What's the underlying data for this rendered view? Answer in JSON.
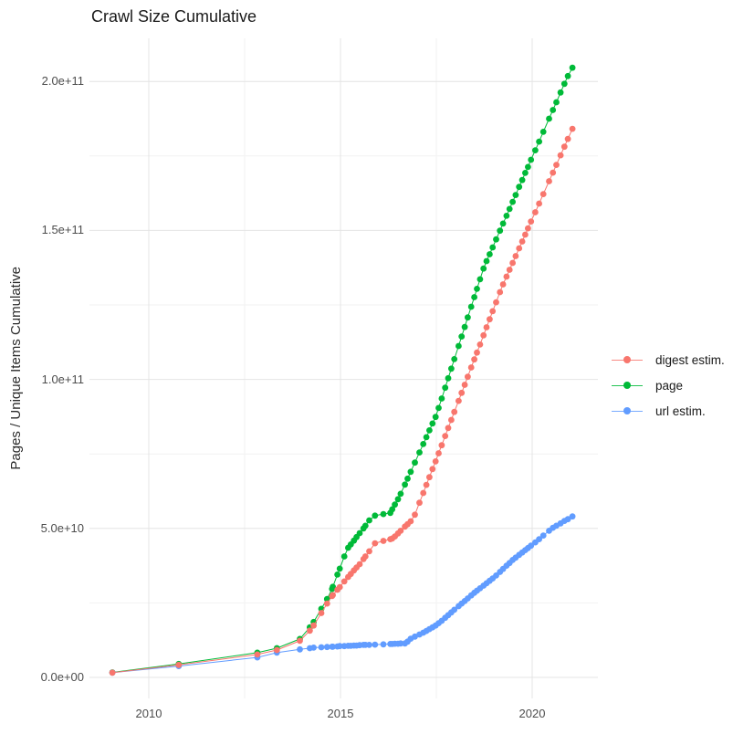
{
  "title": "Crawl Size Cumulative",
  "y_axis": {
    "title": "Pages / Unique Items Cumulative",
    "tick_labels": [
      "0.0e+00",
      "5.0e+10",
      "1.0e+11",
      "1.5e+11",
      "2.0e+11"
    ]
  },
  "x_axis": {
    "tick_labels": [
      "2010",
      "2015",
      "2020"
    ]
  },
  "legend": {
    "items": [
      {
        "label": "digest estim.",
        "color": "#F8766D"
      },
      {
        "label": "page",
        "color": "#00BA38"
      },
      {
        "label": "url estim.",
        "color": "#619CFF"
      }
    ]
  },
  "colors": {
    "digest": "#F8766D",
    "page": "#00BA38",
    "url": "#619CFF",
    "grid_major": "#E4E4E4",
    "grid_minor": "#F2F2F2",
    "tick_text": "#4d4d4d",
    "title_text": "#1a1a1a"
  },
  "chart_data": {
    "type": "scatter",
    "title": "Crawl Size Cumulative",
    "xlabel": "",
    "ylabel": "Pages / Unique Items Cumulative",
    "value_unit": "pages / items, values stored in billions (1e9)",
    "grid": true,
    "legend_position": "right",
    "xlim": [
      2008.45,
      2021.71
    ],
    "ylim_e9": [
      0,
      214
    ],
    "axes": {
      "x_major": [
        {
          "value": 2010,
          "label": "2010"
        },
        {
          "value": 2015,
          "label": "2015"
        },
        {
          "value": 2020,
          "label": "2020"
        }
      ],
      "x_minor": [
        2012.5,
        2017.5
      ],
      "y_major_e9": [
        {
          "value": 0,
          "label": "0.0e+00"
        },
        {
          "value": 50,
          "label": "5.0e+10"
        },
        {
          "value": 100,
          "label": "1.0e+11"
        },
        {
          "value": 150,
          "label": "1.5e+11"
        },
        {
          "value": 200,
          "label": "2.0e+11"
        }
      ],
      "y_minor_e9": [
        25,
        75,
        125,
        175
      ]
    },
    "x": [
      2009.05,
      2010.78,
      2012.83,
      2013.34,
      2013.94,
      2014.2,
      2014.3,
      2014.5,
      2014.65,
      2014.78,
      2014.8,
      2014.92,
      2014.98,
      2015.1,
      2015.2,
      2015.27,
      2015.35,
      2015.42,
      2015.5,
      2015.6,
      2015.65,
      2015.75,
      2015.9,
      2016.12,
      2016.3,
      2016.35,
      2016.42,
      2016.5,
      2016.57,
      2016.68,
      2016.75,
      2016.83,
      2016.94,
      2017.06,
      2017.16,
      2017.24,
      2017.32,
      2017.4,
      2017.48,
      2017.56,
      2017.64,
      2017.73,
      2017.81,
      2017.89,
      2017.97,
      2018.08,
      2018.16,
      2018.24,
      2018.32,
      2018.41,
      2018.49,
      2018.56,
      2018.64,
      2018.73,
      2018.81,
      2018.89,
      2018.97,
      2019.06,
      2019.16,
      2019.24,
      2019.33,
      2019.41,
      2019.49,
      2019.57,
      2019.66,
      2019.74,
      2019.82,
      2019.89,
      2019.97,
      2020.08,
      2020.18,
      2020.29,
      2020.44,
      2020.54,
      2020.63,
      2020.74,
      2020.84,
      2020.93,
      2021.05
    ],
    "series": [
      {
        "name": "digest estim.",
        "color": "#F8766D",
        "values_e9": [
          1.6,
          4.2,
          7.7,
          9.2,
          12.3,
          15.7,
          17.4,
          21.6,
          24.8,
          27.3,
          27.6,
          29.4,
          30.3,
          32.2,
          33.7,
          34.7,
          35.9,
          36.9,
          38.0,
          39.7,
          40.6,
          42.3,
          45.0,
          45.8,
          46.4,
          46.6,
          47.3,
          48.3,
          49.2,
          50.6,
          51.4,
          52.4,
          54.6,
          58.6,
          61.9,
          64.6,
          67.2,
          69.9,
          72.5,
          75.2,
          77.9,
          81.0,
          83.7,
          86.4,
          89.1,
          92.8,
          95.5,
          98.2,
          100.9,
          104.0,
          106.7,
          109.0,
          111.7,
          114.8,
          117.5,
          120.2,
          122.9,
          125.9,
          129.3,
          131.9,
          134.5,
          136.8,
          139.1,
          141.4,
          144.0,
          146.3,
          148.6,
          150.7,
          153.0,
          156.1,
          159.0,
          162.2,
          166.5,
          169.4,
          172.0,
          175.2,
          178.1,
          180.7,
          184.1
        ]
      },
      {
        "name": "page",
        "color": "#00BA38",
        "values_e9": [
          1.7,
          4.5,
          8.3,
          9.8,
          12.9,
          16.8,
          18.6,
          23.0,
          26.3,
          29.7,
          30.4,
          34.5,
          36.5,
          40.6,
          43.5,
          44.6,
          45.9,
          47.1,
          48.4,
          50.0,
          50.9,
          52.7,
          54.3,
          54.8,
          55.2,
          56.4,
          58.0,
          59.8,
          61.6,
          64.7,
          66.7,
          69.0,
          72.1,
          75.5,
          78.3,
          80.6,
          82.9,
          85.2,
          87.4,
          90.4,
          93.6,
          97.2,
          100.4,
          103.6,
          106.8,
          111.2,
          114.4,
          117.6,
          120.8,
          124.4,
          127.6,
          130.4,
          133.6,
          137.2,
          139.7,
          142.0,
          144.3,
          147.0,
          149.9,
          152.3,
          154.9,
          157.2,
          159.6,
          161.9,
          164.6,
          166.9,
          169.3,
          171.3,
          173.7,
          176.9,
          179.8,
          183.1,
          187.5,
          190.4,
          193.0,
          196.3,
          199.2,
          201.8,
          204.6
        ]
      },
      {
        "name": "url estim.",
        "color": "#619CFF",
        "values_e9": [
          1.6,
          3.8,
          6.7,
          8.3,
          9.4,
          9.8,
          10.0,
          10.1,
          10.2,
          10.3,
          10.3,
          10.4,
          10.5,
          10.5,
          10.6,
          10.6,
          10.7,
          10.7,
          10.8,
          10.9,
          10.9,
          10.9,
          11.0,
          11.1,
          11.2,
          11.2,
          11.3,
          11.3,
          11.4,
          11.4,
          12.0,
          13.0,
          13.7,
          14.4,
          15.0,
          15.6,
          16.2,
          16.8,
          17.4,
          18.2,
          19.0,
          20.0,
          20.9,
          21.8,
          22.7,
          23.9,
          24.8,
          25.6,
          26.5,
          27.5,
          28.4,
          29.1,
          29.9,
          30.8,
          31.6,
          32.4,
          33.2,
          34.2,
          35.4,
          36.4,
          37.5,
          38.4,
          39.4,
          40.2,
          41.1,
          41.9,
          42.7,
          43.4,
          44.2,
          45.3,
          46.4,
          47.6,
          49.2,
          50.2,
          50.9,
          51.7,
          52.5,
          53.1,
          54.0
        ]
      }
    ],
    "draw_order": [
      1,
      2,
      0
    ]
  }
}
